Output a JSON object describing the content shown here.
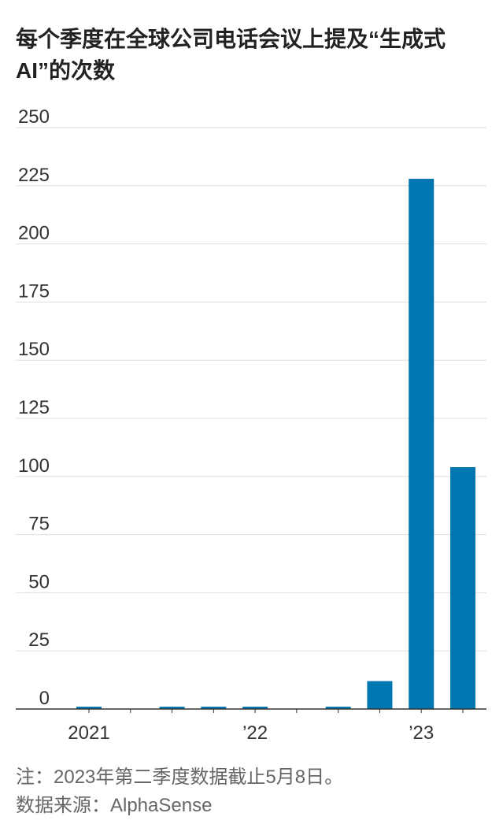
{
  "chart_data": {
    "type": "bar",
    "title": "每个季度在全球公司电话会议上提及“生成式AI”的次数",
    "categories": [
      "2021",
      null,
      null,
      null,
      "’22",
      null,
      null,
      null,
      "’23",
      null
    ],
    "values": [
      1,
      0,
      1,
      1,
      1,
      0,
      1,
      12,
      228,
      104
    ],
    "color": "#0077b0",
    "ylim": [
      0,
      250
    ],
    "yticks": [
      0,
      25,
      50,
      75,
      100,
      125,
      150,
      175,
      200,
      225,
      250
    ],
    "grid": true,
    "note": "注：2023年第二季度数据截止5月8日。",
    "source": "数据来源：AlphaSense"
  }
}
